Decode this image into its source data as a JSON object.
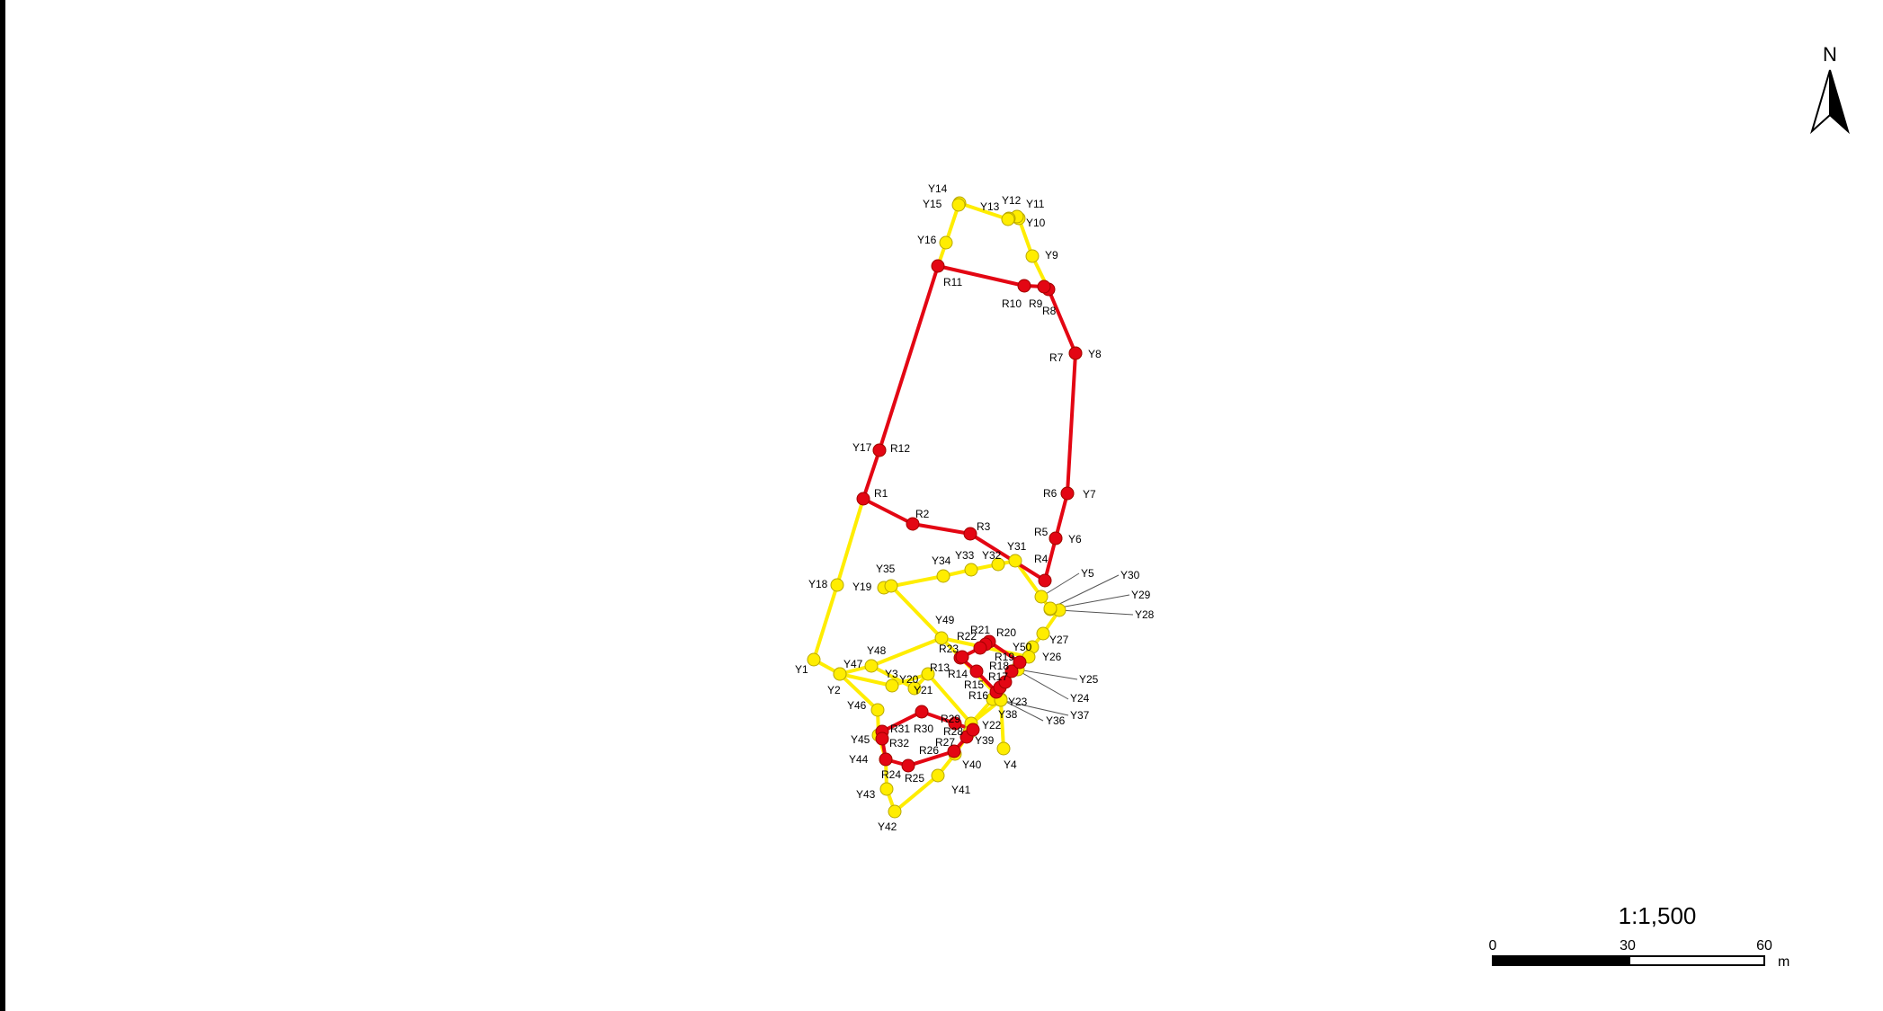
{
  "map": {
    "north_label": "N",
    "scale_ratio": "1:1,500",
    "scale_ticks": [
      "0",
      "30",
      "60"
    ],
    "scale_unit": "m",
    "colors": {
      "red_route": "#e30613",
      "yellow_route": "#ffed00",
      "marker_stroke": "#b8a800",
      "red_marker_stroke": "#a00000"
    },
    "red_routes": [
      [
        "R1",
        "R2",
        "R3",
        "R4",
        "R5",
        "R6",
        "R7",
        "R8",
        "R9",
        "R10",
        "R11",
        "R12",
        "R1"
      ],
      [
        "R14",
        "R13",
        "R23",
        "R22",
        "R21",
        "R20",
        "R19",
        "R18",
        "R17",
        "R16",
        "R15",
        "R14"
      ],
      [
        "R24",
        "R25",
        "R26",
        "R27",
        "R28",
        "R29",
        "R30",
        "R31",
        "R32",
        "R24"
      ]
    ],
    "yellow_routes": [
      [
        "Y1",
        "Y2",
        "Y3",
        "Y21",
        "Y22",
        "Y38",
        "Y4"
      ],
      [
        "Y1",
        "Y18",
        "R1"
      ],
      [
        "Y35",
        "Y36"
      ],
      [
        "Y19",
        "Y34",
        "Y33",
        "Y32",
        "Y31",
        "Y5",
        "Y29",
        "Y28",
        "Y27",
        "Y26",
        "Y25",
        "Y24",
        "Y23",
        "Y22",
        "Y39",
        "Y40",
        "Y41",
        "Y42",
        "Y43",
        "Y44",
        "Y45",
        "Y46",
        "Y47",
        "Y48",
        "Y49",
        "Y50"
      ],
      [
        "Y14",
        "Y15",
        "Y16",
        "R11"
      ],
      [
        "Y14",
        "Y13",
        "Y12",
        "Y11",
        "Y10",
        "Y9",
        "R8"
      ],
      [
        "Y48",
        "Y20",
        "Y21"
      ]
    ],
    "points": [
      {
        "id": "R1",
        "color": "red",
        "label": "R1"
      },
      {
        "id": "R2",
        "color": "red",
        "label": "R2"
      },
      {
        "id": "R3",
        "color": "red",
        "label": "R3"
      },
      {
        "id": "R4",
        "color": "red",
        "label": "R4"
      },
      {
        "id": "R5",
        "color": "red",
        "label": "R5"
      },
      {
        "id": "R6",
        "color": "red",
        "label": "R6"
      },
      {
        "id": "R7",
        "color": "red",
        "label": "R7"
      },
      {
        "id": "R8",
        "color": "red",
        "label": "R8"
      },
      {
        "id": "R9",
        "color": "red",
        "label": "R9"
      },
      {
        "id": "R10",
        "color": "red",
        "label": "R10"
      },
      {
        "id": "R11",
        "color": "red",
        "label": "R11"
      },
      {
        "id": "R12",
        "color": "red",
        "label": "R12"
      },
      {
        "id": "R13",
        "color": "red",
        "label": "R13"
      },
      {
        "id": "R14",
        "color": "red",
        "label": "R14"
      },
      {
        "id": "R15",
        "color": "red",
        "label": "R15"
      },
      {
        "id": "R16",
        "color": "red",
        "label": "R16"
      },
      {
        "id": "R17",
        "color": "red",
        "label": "R17"
      },
      {
        "id": "R18",
        "color": "red",
        "label": "R18"
      },
      {
        "id": "R19",
        "color": "red",
        "label": "R19"
      },
      {
        "id": "R20",
        "color": "red",
        "label": "R20"
      },
      {
        "id": "R21",
        "color": "red",
        "label": "R21"
      },
      {
        "id": "R22",
        "color": "red",
        "label": "R22"
      },
      {
        "id": "R23",
        "color": "red",
        "label": "R23"
      },
      {
        "id": "R24",
        "color": "red",
        "label": "R24"
      },
      {
        "id": "R25",
        "color": "red",
        "label": "R25"
      },
      {
        "id": "R26",
        "color": "red",
        "label": "R26"
      },
      {
        "id": "R27",
        "color": "red",
        "label": "R27"
      },
      {
        "id": "R28",
        "color": "red",
        "label": "R28"
      },
      {
        "id": "R29",
        "color": "red",
        "label": "R29"
      },
      {
        "id": "R30",
        "color": "red",
        "label": "R30"
      },
      {
        "id": "R31",
        "color": "red",
        "label": "R31"
      },
      {
        "id": "R32",
        "color": "red",
        "label": "R32"
      },
      {
        "id": "Y1",
        "color": "yellow",
        "label": "Y1"
      },
      {
        "id": "Y2",
        "color": "yellow",
        "label": "Y2"
      },
      {
        "id": "Y3",
        "color": "yellow",
        "label": "Y3"
      },
      {
        "id": "Y4",
        "color": "yellow",
        "label": "Y4"
      },
      {
        "id": "Y5",
        "color": "yellow",
        "label": "Y5"
      },
      {
        "id": "Y6",
        "color": "yellow",
        "label": "Y6"
      },
      {
        "id": "Y7",
        "color": "yellow",
        "label": "Y7"
      },
      {
        "id": "Y8",
        "color": "yellow",
        "label": "Y8"
      },
      {
        "id": "Y9",
        "color": "yellow",
        "label": "Y9"
      },
      {
        "id": "Y10",
        "color": "yellow",
        "label": "Y10"
      },
      {
        "id": "Y11",
        "color": "yellow",
        "label": "Y11"
      },
      {
        "id": "Y12",
        "color": "yellow",
        "label": "Y12"
      },
      {
        "id": "Y13",
        "color": "yellow",
        "label": "Y13"
      },
      {
        "id": "Y14",
        "color": "yellow",
        "label": "Y14"
      },
      {
        "id": "Y15",
        "color": "yellow",
        "label": "Y15"
      },
      {
        "id": "Y16",
        "color": "yellow",
        "label": "Y16"
      },
      {
        "id": "Y17",
        "color": "yellow",
        "label": "Y17"
      },
      {
        "id": "Y18",
        "color": "yellow",
        "label": "Y18"
      },
      {
        "id": "Y19",
        "color": "yellow",
        "label": "Y19"
      },
      {
        "id": "Y20",
        "color": "yellow",
        "label": "Y20"
      },
      {
        "id": "Y21",
        "color": "yellow",
        "label": "Y21"
      },
      {
        "id": "Y22",
        "color": "yellow",
        "label": "Y22"
      },
      {
        "id": "Y23",
        "color": "yellow",
        "label": "Y23"
      },
      {
        "id": "Y24",
        "color": "yellow",
        "label": "Y24"
      },
      {
        "id": "Y25",
        "color": "yellow",
        "label": "Y25"
      },
      {
        "id": "Y26",
        "color": "yellow",
        "label": "Y26"
      },
      {
        "id": "Y27",
        "color": "yellow",
        "label": "Y27"
      },
      {
        "id": "Y28",
        "color": "yellow",
        "label": "Y28"
      },
      {
        "id": "Y29",
        "color": "yellow",
        "label": "Y29"
      },
      {
        "id": "Y30",
        "color": "yellow",
        "label": "Y30"
      },
      {
        "id": "Y31",
        "color": "yellow",
        "label": "Y31"
      },
      {
        "id": "Y32",
        "color": "yellow",
        "label": "Y32"
      },
      {
        "id": "Y33",
        "color": "yellow",
        "label": "Y33"
      },
      {
        "id": "Y34",
        "color": "yellow",
        "label": "Y34"
      },
      {
        "id": "Y35",
        "color": "yellow",
        "label": "Y35"
      },
      {
        "id": "Y36",
        "color": "yellow",
        "label": "Y36"
      },
      {
        "id": "Y37",
        "color": "yellow",
        "label": "Y37"
      },
      {
        "id": "Y38",
        "color": "yellow",
        "label": "Y38"
      },
      {
        "id": "Y39",
        "color": "yellow",
        "label": "Y39"
      },
      {
        "id": "Y40",
        "color": "yellow",
        "label": "Y40"
      },
      {
        "id": "Y41",
        "color": "yellow",
        "label": "Y41"
      },
      {
        "id": "Y42",
        "color": "yellow",
        "label": "Y42"
      },
      {
        "id": "Y43",
        "color": "yellow",
        "label": "Y43"
      },
      {
        "id": "Y44",
        "color": "yellow",
        "label": "Y44"
      },
      {
        "id": "Y45",
        "color": "yellow",
        "label": "Y45"
      },
      {
        "id": "Y46",
        "color": "yellow",
        "label": "Y46"
      },
      {
        "id": "Y47",
        "color": "yellow",
        "label": "Y47"
      },
      {
        "id": "Y48",
        "color": "yellow",
        "label": "Y48"
      },
      {
        "id": "Y49",
        "color": "yellow",
        "label": "Y49"
      },
      {
        "id": "Y50",
        "color": "yellow",
        "label": "Y50"
      }
    ]
  }
}
